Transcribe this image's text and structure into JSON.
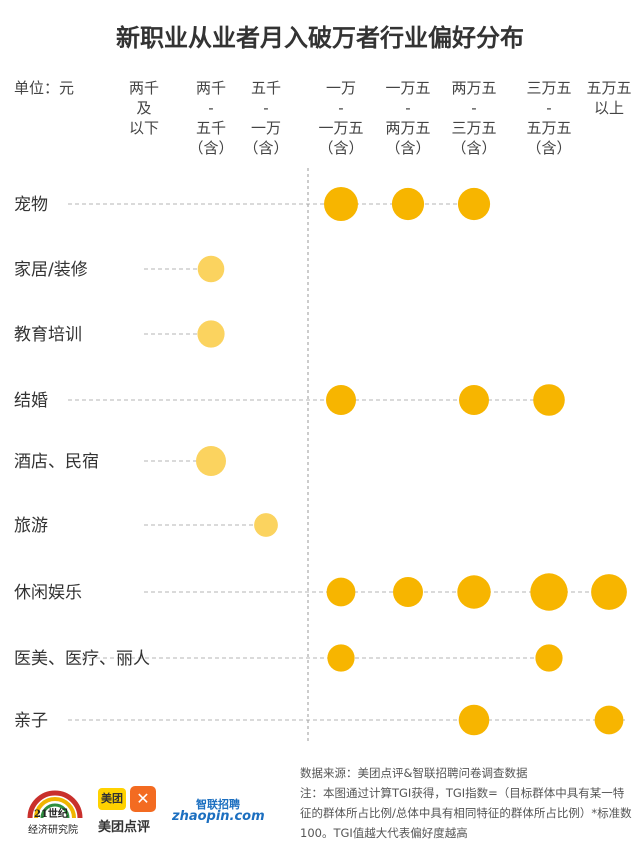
{
  "title": "新职业从业者月入破万者行业偏好分布",
  "unit_label": "单位：元",
  "columns": [
    {
      "label": "两千\n及\n以下"
    },
    {
      "label": "两千\n-\n五千\n（含）"
    },
    {
      "label": "五千\n-\n一万\n（含）"
    },
    {
      "label": "一万\n-\n一万五\n（含）"
    },
    {
      "label": "一万五\n-\n两万五\n（含）"
    },
    {
      "label": "两万五\n-\n三万五\n（含）"
    },
    {
      "label": "三万五\n-\n五万五\n（含）"
    },
    {
      "label": "五万五\n以上"
    }
  ],
  "chart_data": {
    "type": "scatter",
    "title": "新职业从业者月入破万者行业偏好分布",
    "unit": "单位：元",
    "x_categories": [
      "两千及以下",
      "两千-五千（含）",
      "五千-一万（含）",
      "一万-一万五（含）",
      "一万五-两万五（含）",
      "两万五-三万五（含）",
      "三万五-五万五（含）",
      "五万五以上"
    ],
    "y_categories": [
      "宠物",
      "家居/装修",
      "教育培训",
      "结婚",
      "酒店、民宿",
      "旅游",
      "休闲娱乐",
      "医美、医疗、丽人",
      "亲子"
    ],
    "points": [
      {
        "row": "宠物",
        "col": "一万-一万五（含）",
        "size": 1.0
      },
      {
        "row": "宠物",
        "col": "一万五-两万五（含）",
        "size": 0.95
      },
      {
        "row": "宠物",
        "col": "两万五-三万五（含）",
        "size": 0.95
      },
      {
        "row": "家居/装修",
        "col": "两千-五千（含）",
        "size": 0.78
      },
      {
        "row": "教育培训",
        "col": "两千-五千（含）",
        "size": 0.8
      },
      {
        "row": "结婚",
        "col": "一万-一万五（含）",
        "size": 0.88
      },
      {
        "row": "结婚",
        "col": "两万五-三万五（含）",
        "size": 0.88
      },
      {
        "row": "结婚",
        "col": "三万五-五万五（含）",
        "size": 0.93
      },
      {
        "row": "酒店、民宿",
        "col": "两千-五千（含）",
        "size": 0.88
      },
      {
        "row": "旅游",
        "col": "五千-一万（含）",
        "size": 0.7
      },
      {
        "row": "休闲娱乐",
        "col": "一万-一万五（含）",
        "size": 0.85
      },
      {
        "row": "休闲娱乐",
        "col": "一万五-两万五（含）",
        "size": 0.88
      },
      {
        "row": "休闲娱乐",
        "col": "两万五-三万五（含）",
        "size": 0.98
      },
      {
        "row": "休闲娱乐",
        "col": "三万五-五万五（含）",
        "size": 1.1
      },
      {
        "row": "休闲娱乐",
        "col": "五万五以上",
        "size": 1.05
      },
      {
        "row": "医美、医疗、丽人",
        "col": "一万-一万五（含）",
        "size": 0.8
      },
      {
        "row": "医美、医疗、丽人",
        "col": "三万五-五万五（含）",
        "size": 0.8
      },
      {
        "row": "亲子",
        "col": "两万五-三万五（含）",
        "size": 0.9
      },
      {
        "row": "亲子",
        "col": "五万五以上",
        "size": 0.85
      }
    ],
    "colors": {
      "high": "#f7b500",
      "low": "#fbd35f"
    },
    "divider_after_col": "五千-一万（含）",
    "grid": "dashed row guides"
  },
  "footer": {
    "source": "数据来源：美团点评&智联招聘问卷调查数据",
    "note": "注：本图通过计算TGI获得，TGI指数=（目标群体中具有某一特征的群体所占比例/总体中具有相同特征的群体所占比例）*标准数100。TGI值越大代表偏好度越高"
  },
  "logos": {
    "l1_num": "21世纪",
    "l1_sub": "经济研究院",
    "meituan_badge": "美团",
    "meituan_text": "美团点评",
    "zhaopin_top": "智联招聘",
    "zhaopin_bottom": "zhaopin.com"
  }
}
